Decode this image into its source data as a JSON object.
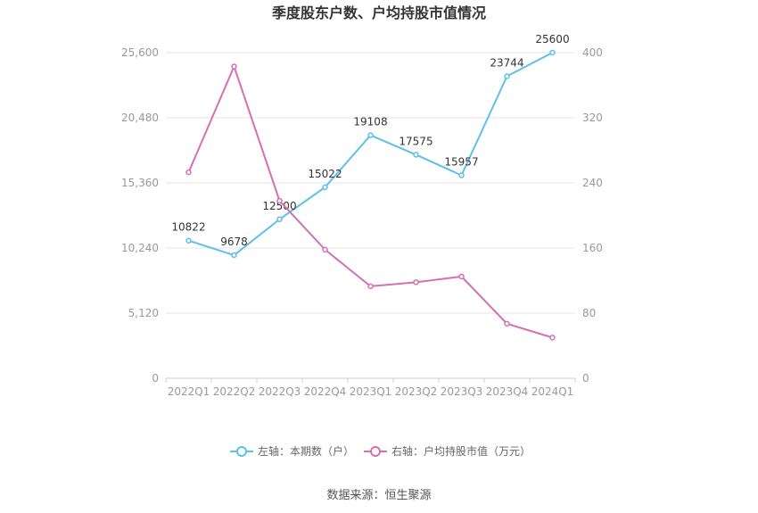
{
  "chart_data": {
    "type": "line",
    "title": "季度股东户数、户均持股市值情况",
    "categories": [
      "2022Q1",
      "2022Q2",
      "2022Q3",
      "2022Q4",
      "2023Q1",
      "2023Q2",
      "2023Q3",
      "2023Q4",
      "2024Q1"
    ],
    "y_left": {
      "min": 0,
      "max": 25600,
      "ticks": [
        "0",
        "5,120",
        "10,240",
        "15,360",
        "20,480",
        "25,600"
      ]
    },
    "y_right": {
      "min": 0,
      "max": 400,
      "ticks": [
        "0",
        "80",
        "160",
        "240",
        "320",
        "400"
      ]
    },
    "series": [
      {
        "name": "左轴：本期数（户）",
        "axis": "left",
        "color": "#5bc0ec",
        "values": [
          10822,
          9678,
          12500,
          15022,
          19108,
          17575,
          15957,
          23744,
          25600
        ],
        "labels": [
          "10822",
          "9678",
          "12500",
          "15022",
          "19108",
          "17575",
          "15957",
          "23744",
          "25600"
        ]
      },
      {
        "name": "右轴：户均持股市值（万元）",
        "axis": "right",
        "color": "#d46fb3",
        "values": [
          253,
          383,
          218,
          158,
          113,
          118,
          125,
          67,
          50
        ]
      }
    ],
    "grid": true,
    "legend_position": "bottom"
  },
  "source": "数据来源：恒生聚源"
}
